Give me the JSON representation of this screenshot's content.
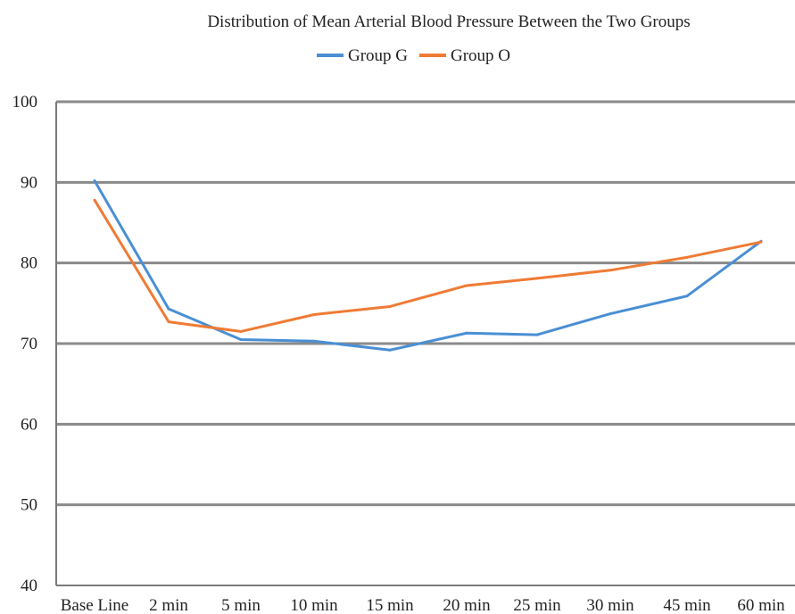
{
  "chart_data": {
    "type": "line",
    "title": "Distribution of Mean Arterial Blood Pressure Between the Two Groups",
    "xlabel": "",
    "ylabel": "",
    "categories": [
      "Base Line",
      "2 min",
      "5 min",
      "10 min",
      "15 min",
      "20 min",
      "25 min",
      "30 min",
      "45 min",
      "60 min"
    ],
    "ylim": [
      40,
      100
    ],
    "yticks": [
      100,
      90,
      80,
      70,
      60,
      50,
      40
    ],
    "grid": true,
    "legend_position": "top-center",
    "series": [
      {
        "name": "Group G",
        "color": "#4a8fd4",
        "values": [
          90.2,
          74.3,
          70.5,
          70.3,
          69.2,
          71.3,
          71.1,
          73.7,
          75.9,
          82.7
        ]
      },
      {
        "name": "Group O",
        "color": "#ef7b35",
        "values": [
          87.8,
          72.7,
          71.5,
          73.6,
          74.6,
          77.2,
          78.1,
          79.1,
          80.7,
          82.6
        ]
      }
    ]
  }
}
